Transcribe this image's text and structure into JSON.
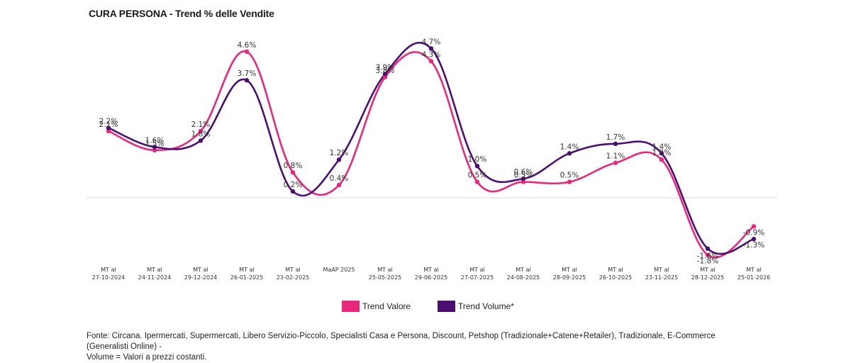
{
  "title": "CURA PERSONA - Trend % delle Vendite",
  "colors": {
    "valore": "#E8287A",
    "volume": "#4B0F72",
    "baseline": "#d9d9d9"
  },
  "chart_data": {
    "type": "line",
    "title": "CURA PERSONA - Trend % delle Vendite",
    "xlabel": "",
    "ylabel": "",
    "ylim": [
      -2.2,
      5.2
    ],
    "grid": false,
    "legend_position": "bottom",
    "categories": [
      [
        "MT al",
        "27-10-2024"
      ],
      [
        "MT al",
        "24-11-2024"
      ],
      [
        "MT al",
        "29-12-2024"
      ],
      [
        "MT al",
        "26-01-2025"
      ],
      [
        "MT al",
        "23-02-2025"
      ],
      [
        "MaAP 2025",
        ""
      ],
      [
        "MT al",
        "25-05-2025"
      ],
      [
        "MT al",
        "29-06-2025"
      ],
      [
        "MT al",
        "27-07-2025"
      ],
      [
        "MT al",
        "24-08-2025"
      ],
      [
        "MT al",
        "28-09-2025"
      ],
      [
        "MT al",
        "26-10-2025"
      ],
      [
        "MT al",
        "23-11-2025"
      ],
      [
        "MT al",
        "28-12-2025"
      ],
      [
        "MT al",
        "25-01-2026"
      ]
    ],
    "series": [
      {
        "name": "Trend Valore",
        "key": "valore",
        "values": [
          2.1,
          1.5,
          2.1,
          4.6,
          0.8,
          0.4,
          3.8,
          4.3,
          0.5,
          0.5,
          0.5,
          1.1,
          1.2,
          -1.8,
          -0.9
        ]
      },
      {
        "name": "Trend Volume*",
        "key": "volume",
        "values": [
          2.2,
          1.6,
          1.8,
          3.7,
          0.2,
          1.2,
          3.9,
          4.7,
          1.0,
          0.6,
          1.4,
          1.7,
          1.4,
          -1.6,
          -1.3
        ]
      }
    ]
  },
  "legend": [
    {
      "label": "Trend Valore"
    },
    {
      "label": "Trend Volume*"
    }
  ],
  "footnote": {
    "line1": "Fonte: Circana. Ipermercati, Supermercati, Libero Servizio-Piccolo, Specialisti Casa e Persona, Discount, Petshop (Tradizionale+Catene+Retailer), Tradizionale, E-Commerce (Generalisti Online) -",
    "line2": "Volume = Valori a prezzi costanti."
  }
}
